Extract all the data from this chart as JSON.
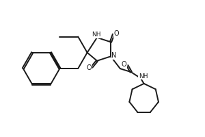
{
  "bg_color": "#ffffff",
  "line_color": "#1a1a1a",
  "line_width": 1.4,
  "fig_width": 3.0,
  "fig_height": 2.0,
  "dpi": 100,
  "xlim": [
    0,
    3.0
  ],
  "ylim": [
    0,
    2.0
  ]
}
